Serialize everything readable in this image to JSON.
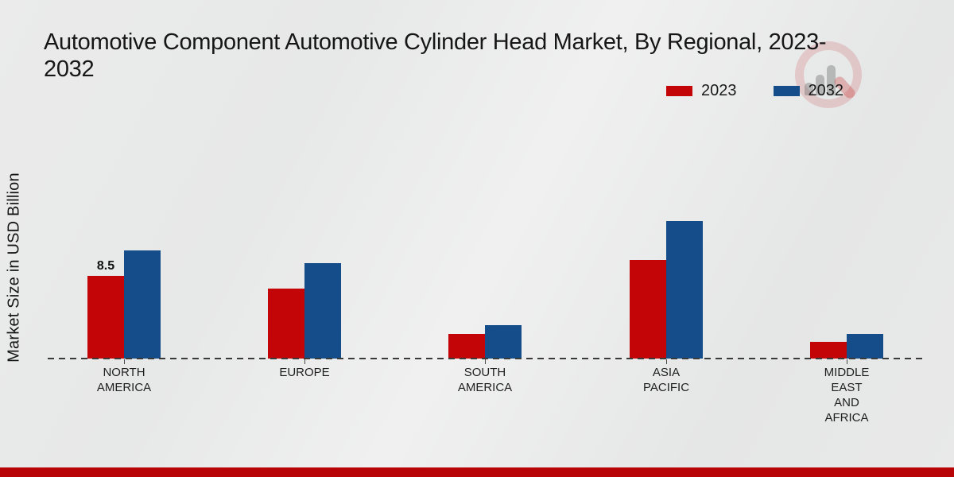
{
  "title": {
    "line1": "Automotive Component Automotive Cylinder Head Market, By Regional, 2023-",
    "line2": "2032",
    "full": "Automotive Component Automotive Cylinder Head Market, By Regional, 2023-2032"
  },
  "y_axis_label": "Market Size in USD Billion",
  "legend": {
    "items": [
      {
        "label": "2023",
        "color": "#c40508"
      },
      {
        "label": "2032",
        "color": "#154d8b"
      }
    ]
  },
  "watermark_icon": "magnifier-bar-chart-logo",
  "footer": {
    "bar_color": "#b90407"
  },
  "chart_data": {
    "type": "bar",
    "title": "Automotive Component Automotive Cylinder Head Market, By Regional, 2023-2032",
    "ylabel": "Market Size in USD Billion",
    "xlabel": "",
    "legend_position": "top-right",
    "grid": false,
    "baseline_style": "dashed",
    "ylim": [
      0,
      16
    ],
    "categories": [
      "NORTH AMERICA",
      "EUROPE",
      "SOUTH AMERICA",
      "ASIA PACIFIC",
      "MIDDLE EAST AND AFRICA"
    ],
    "category_label_lines": [
      [
        "NORTH",
        "AMERICA"
      ],
      [
        "EUROPE"
      ],
      [
        "SOUTH",
        "AMERICA"
      ],
      [
        "ASIA",
        "PACIFIC"
      ],
      [
        "MIDDLE",
        "EAST",
        "AND",
        "AFRICA"
      ]
    ],
    "series": [
      {
        "name": "2023",
        "color": "#c40508",
        "values": [
          8.5,
          7.2,
          2.5,
          10.1,
          1.7
        ],
        "data_labels": [
          "8.5",
          "",
          "",
          "",
          ""
        ]
      },
      {
        "name": "2032",
        "color": "#154d8b",
        "values": [
          11.1,
          9.8,
          3.4,
          14.1,
          2.5
        ],
        "data_labels": [
          "",
          "",
          "",
          "",
          ""
        ]
      }
    ]
  }
}
